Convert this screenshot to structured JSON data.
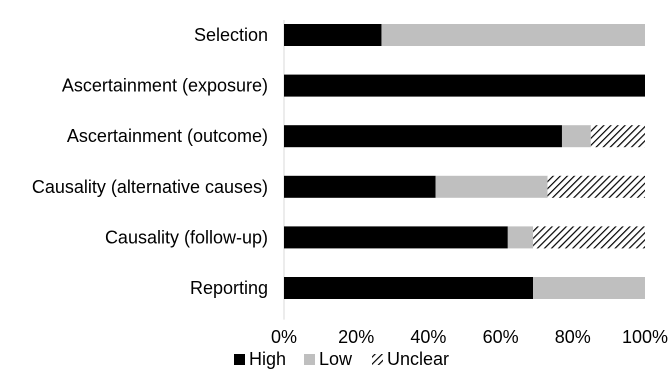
{
  "chart_data": {
    "type": "bar",
    "orientation": "horizontal",
    "stacked": true,
    "categories": [
      "Selection",
      "Ascertainment (exposure)",
      "Ascertainment (outcome)",
      "Causality (alternative causes)",
      "Causality (follow-up)",
      "Reporting"
    ],
    "series": [
      {
        "name": "High",
        "color": "#000000",
        "pattern": "solid",
        "values": [
          27,
          100,
          77,
          42,
          62,
          69
        ]
      },
      {
        "name": "Low",
        "color": "#bfbfbf",
        "pattern": "solid",
        "values": [
          73,
          0,
          8,
          31,
          7,
          31
        ]
      },
      {
        "name": "Unclear",
        "color": "#000000",
        "pattern": "diagonal-hatch",
        "values": [
          0,
          0,
          15,
          27,
          31,
          0
        ]
      }
    ],
    "xlim": [
      0,
      100
    ],
    "xticks": [
      "0%",
      "20%",
      "40%",
      "60%",
      "80%",
      "100%"
    ],
    "grid": false,
    "legend_position": "bottom"
  }
}
